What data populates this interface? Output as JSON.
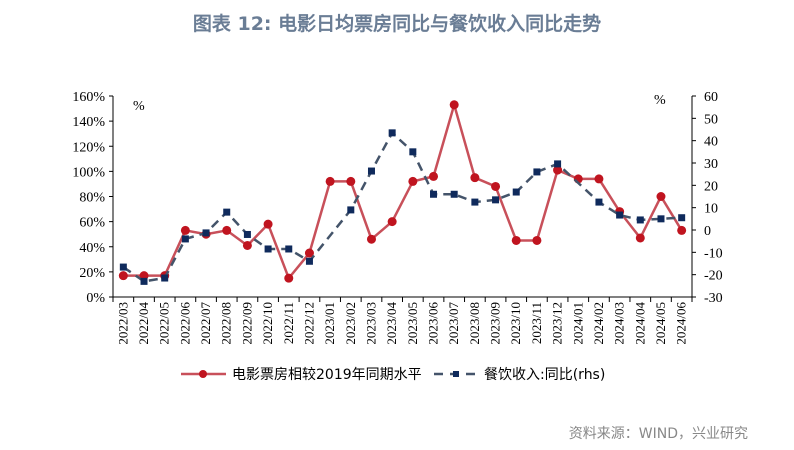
{
  "title": "图表 12: 电影日均票房同比与餐饮收入同比走势",
  "source": "资料来源：WIND，兴业研究",
  "chart_data": {
    "type": "line",
    "title": "图表 12: 电影日均票房同比与餐饮收入同比走势",
    "categories": [
      "2022/03",
      "2022/04",
      "2022/05",
      "2022/06",
      "2022/07",
      "2022/08",
      "2022/09",
      "2022/10",
      "2022/11",
      "2022/12",
      "2023/01",
      "2023/02",
      "2023/03",
      "2023/04",
      "2023/05",
      "2023/06",
      "2023/07",
      "2023/08",
      "2023/09",
      "2023/10",
      "2023/11",
      "2023/12",
      "2024/01",
      "2024/02",
      "2024/03",
      "2024/04",
      "2024/05",
      "2024/06"
    ],
    "left_axis": {
      "unit_label": "%",
      "ylim": [
        0,
        160
      ],
      "step": 20,
      "tick_suffix": "%"
    },
    "right_axis": {
      "unit_label": "%",
      "ylim": [
        -30,
        60
      ],
      "step": 10
    },
    "legend_position": "bottom",
    "grid": false,
    "series": [
      {
        "name": "电影票房相较2019年同期水平",
        "axis": "left",
        "color": "#c0141f",
        "line_color": "#c8505a",
        "marker": "circle",
        "dash": false,
        "values": [
          17,
          17,
          17,
          53,
          50,
          53,
          41,
          58,
          15,
          35,
          92,
          92,
          46,
          60,
          92,
          96,
          153,
          95,
          88,
          45,
          45,
          101,
          94,
          94,
          68,
          47,
          80,
          53
        ]
      },
      {
        "name": "餐饮收入:同比(rhs)",
        "axis": "right",
        "color": "#0f2a5c",
        "line_color": "#44546a",
        "marker": "square",
        "dash": true,
        "values": [
          -16.6,
          -23,
          -21.5,
          -4,
          -1.3,
          8,
          -2,
          -8.5,
          -8.5,
          -14,
          null,
          9,
          26.4,
          43.5,
          35,
          16,
          16,
          12.5,
          13.5,
          17,
          26,
          29.6,
          null,
          12.5,
          6.7,
          4.5,
          5,
          5.5
        ]
      }
    ]
  }
}
